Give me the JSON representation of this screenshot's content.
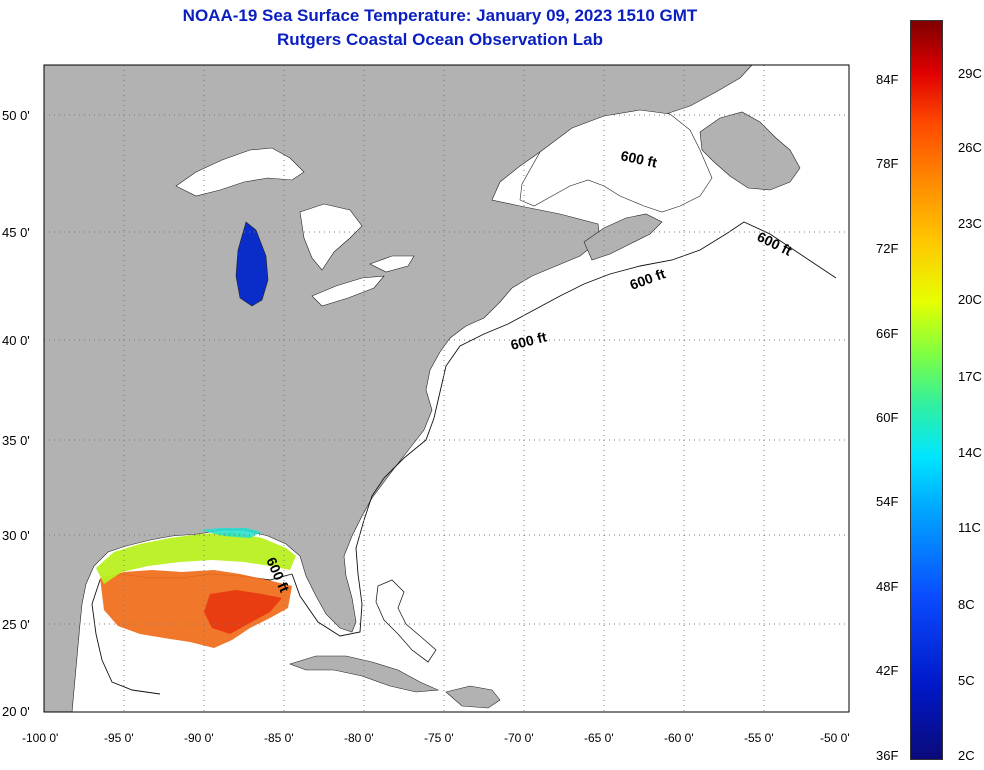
{
  "title": {
    "line1": "NOAA-19 Sea Surface Temperature:  January 09, 2023 1510 GMT",
    "line2": "Rutgers Coastal Ocean Observation Lab"
  },
  "map": {
    "lon_min": -100,
    "lon_max": -50,
    "lat_min": 20,
    "lat_max": 52.5,
    "lon_ticks": [
      "-100 0'",
      "-95 0'",
      "-90 0'",
      "-85 0'",
      "-80 0'",
      "-75 0'",
      "-70 0'",
      "-65 0'",
      "-60 0'",
      "-55 0'",
      "-50 0'"
    ],
    "lat_ticks": [
      "50 0'",
      "45 0'",
      "40 0'",
      "35 0'",
      "30 0'",
      "25 0'",
      "20 0'"
    ],
    "land_color": "#b2b2b2",
    "ocean_color": "#ffffff",
    "contour_labels": [
      "600 ft",
      "600 ft",
      "600 ft",
      "600 ft",
      "600 ft"
    ]
  },
  "colorbar": {
    "fahrenheit": [
      "84F",
      "78F",
      "72F",
      "66F",
      "60F",
      "54F",
      "48F",
      "42F",
      "36F"
    ],
    "celsius": [
      "29C",
      "26C",
      "23C",
      "20C",
      "17C",
      "14C",
      "11C",
      "8C",
      "5C",
      "2C"
    ]
  }
}
